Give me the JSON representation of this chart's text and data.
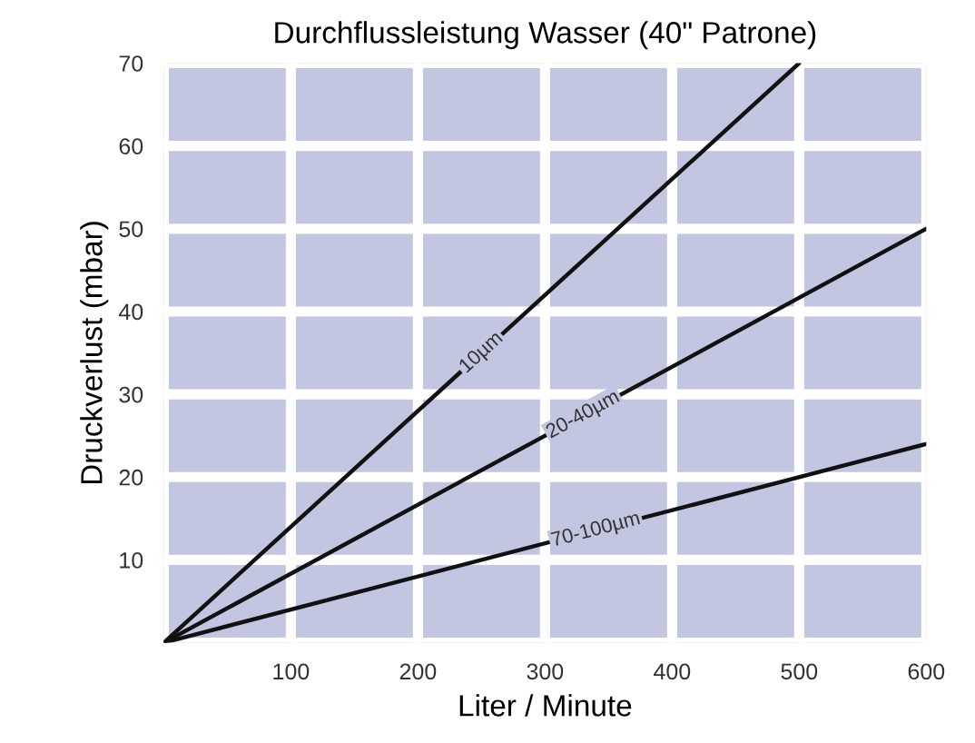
{
  "chart_data": {
    "type": "line",
    "title": "Durchflussleistung Wasser (40\" Patrone)",
    "xlabel": "Liter / Minute",
    "ylabel": "Druckverlust (mbar)",
    "series": [
      {
        "color": "#111111",
        "x": [
          0,
          500
        ],
        "values": [
          0,
          70
        ]
      },
      {
        "color": "#111111",
        "x": [
          0,
          600
        ],
        "values": [
          0,
          50
        ]
      },
      {
        "color": "#111111",
        "x": [
          0,
          600
        ],
        "values": [
          0,
          24
        ]
      }
    ],
    "annotations": [
      {
        "text": "10µm",
        "x": 250,
        "y": 35
      },
      {
        "text": "20-40µm",
        "x": 330,
        "y": 27.5
      },
      {
        "text": "70-100µm",
        "x": 340,
        "y": 13.6
      }
    ],
    "xlim": [
      0,
      600
    ],
    "ylim": [
      0,
      70
    ],
    "xticks": [
      {
        "value": 0,
        "label": null
      },
      100,
      200,
      300,
      400,
      500,
      600
    ],
    "yticks": [
      {
        "value": 0,
        "label": null
      },
      10,
      20,
      30,
      40,
      50,
      60,
      70
    ],
    "grid": true,
    "marker": "none",
    "line_style": "solid"
  }
}
